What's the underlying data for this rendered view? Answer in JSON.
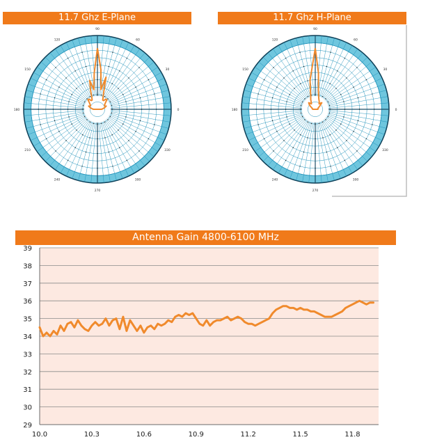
{
  "colors": {
    "accent": "#f07a1a",
    "polar_fill": "#6fc6de",
    "polar_line": "#1b8fb8",
    "gain_bg": "#fde9e1",
    "trace": "#f08a2c"
  },
  "chart_data": [
    {
      "type": "polar",
      "title": "11.7 Ghz E-Plane",
      "angle_labels": [
        "0",
        "30",
        "60",
        "90",
        "120",
        "150",
        "180",
        "210",
        "240",
        "270",
        "300",
        "330"
      ],
      "series": [
        {
          "angles_deg": [
            90,
            85,
            80,
            75,
            70,
            65,
            60,
            55,
            50,
            45,
            40,
            35,
            30,
            25,
            20,
            15,
            10,
            5,
            0,
            180,
            175,
            170,
            165,
            160,
            155,
            150,
            145,
            140,
            135,
            130,
            125,
            120,
            115,
            110,
            105,
            100,
            95,
            90
          ],
          "radius_norm": [
            0.92,
            0.6,
            0.3,
            0.5,
            0.28,
            0.2,
            0.16,
            0.16,
            0.2,
            0.2,
            0.16,
            0.14,
            0.12,
            0.12,
            0.14,
            0.12,
            0.1,
            0.08,
            0.06,
            0.06,
            0.08,
            0.1,
            0.12,
            0.14,
            0.12,
            0.12,
            0.14,
            0.16,
            0.2,
            0.2,
            0.16,
            0.16,
            0.2,
            0.3,
            0.45,
            0.3,
            0.55,
            0.92
          ]
        }
      ]
    },
    {
      "type": "polar",
      "title": "11.7 Ghz H-Plane",
      "angle_labels": [
        "0",
        "30",
        "60",
        "90",
        "120",
        "150",
        "180",
        "210",
        "240",
        "270",
        "300",
        "330"
      ],
      "series": [
        {
          "angles_deg": [
            90,
            85,
            80,
            75,
            70,
            65,
            60,
            55,
            50,
            45,
            40,
            35,
            30,
            25,
            20,
            15,
            10,
            5,
            0,
            180,
            175,
            170,
            165,
            160,
            155,
            150,
            145,
            140,
            135,
            130,
            125,
            120,
            115,
            110,
            105,
            100,
            95,
            90
          ],
          "radius_norm": [
            0.92,
            0.55,
            0.28,
            0.2,
            0.16,
            0.14,
            0.12,
            0.1,
            0.12,
            0.14,
            0.1,
            0.08,
            0.06,
            0.05,
            0.05,
            0.04,
            0.04,
            0.04,
            0.04,
            0.04,
            0.04,
            0.04,
            0.05,
            0.05,
            0.06,
            0.08,
            0.1,
            0.12,
            0.14,
            0.12,
            0.1,
            0.12,
            0.16,
            0.2,
            0.28,
            0.45,
            0.6,
            0.92
          ]
        }
      ]
    },
    {
      "type": "line",
      "title": "Antenna Gain 4800-6100 MHz",
      "x_ticks": [
        "10.0",
        "10.3",
        "10.6",
        "10.9",
        "11.2",
        "11.5",
        "11.8"
      ],
      "y_ticks": [
        "29",
        "30",
        "31",
        "32",
        "33",
        "34",
        "35",
        "36",
        "37",
        "38",
        "39"
      ],
      "xlim": [
        10.0,
        11.95
      ],
      "ylim": [
        29,
        39
      ],
      "grid": true,
      "series": [
        {
          "x": [
            10.0,
            10.02,
            10.04,
            10.06,
            10.08,
            10.1,
            10.12,
            10.14,
            10.16,
            10.18,
            10.2,
            10.22,
            10.24,
            10.26,
            10.28,
            10.3,
            10.32,
            10.34,
            10.36,
            10.38,
            10.4,
            10.42,
            10.44,
            10.46,
            10.48,
            10.5,
            10.52,
            10.54,
            10.56,
            10.58,
            10.6,
            10.62,
            10.64,
            10.66,
            10.68,
            10.7,
            10.72,
            10.74,
            10.76,
            10.78,
            10.8,
            10.82,
            10.84,
            10.86,
            10.88,
            10.9,
            10.92,
            10.94,
            10.96,
            10.98,
            11.0,
            11.02,
            11.04,
            11.06,
            11.08,
            11.1,
            11.12,
            11.14,
            11.16,
            11.18,
            11.2,
            11.22,
            11.24,
            11.26,
            11.28,
            11.3,
            11.32,
            11.34,
            11.36,
            11.38,
            11.4,
            11.42,
            11.44,
            11.46,
            11.48,
            11.5,
            11.52,
            11.54,
            11.56,
            11.58,
            11.6,
            11.62,
            11.64,
            11.66,
            11.68,
            11.7,
            11.72,
            11.74,
            11.76,
            11.78,
            11.8,
            11.82,
            11.84,
            11.86,
            11.88,
            11.9,
            11.92
          ],
          "y": [
            34.5,
            34.0,
            34.2,
            34.0,
            34.3,
            34.1,
            34.6,
            34.3,
            34.7,
            34.8,
            34.5,
            34.9,
            34.6,
            34.4,
            34.3,
            34.6,
            34.8,
            34.6,
            34.7,
            35.0,
            34.6,
            34.9,
            35.0,
            34.4,
            35.1,
            34.3,
            34.9,
            34.6,
            34.3,
            34.6,
            34.2,
            34.5,
            34.6,
            34.4,
            34.7,
            34.6,
            34.7,
            34.9,
            34.8,
            35.1,
            35.2,
            35.1,
            35.3,
            35.2,
            35.3,
            35.0,
            34.7,
            34.6,
            34.9,
            34.6,
            34.8,
            34.9,
            34.9,
            35.0,
            35.1,
            34.9,
            35.0,
            35.1,
            35.0,
            34.8,
            34.7,
            34.7,
            34.6,
            34.7,
            34.8,
            34.9,
            35.0,
            35.3,
            35.5,
            35.6,
            35.7,
            35.7,
            35.6,
            35.6,
            35.5,
            35.6,
            35.5,
            35.5,
            35.4,
            35.4,
            35.3,
            35.2,
            35.1,
            35.1,
            35.1,
            35.2,
            35.3,
            35.4,
            35.6,
            35.7,
            35.8,
            35.9,
            36.0,
            35.9,
            35.8,
            35.9,
            35.9
          ]
        }
      ]
    }
  ]
}
